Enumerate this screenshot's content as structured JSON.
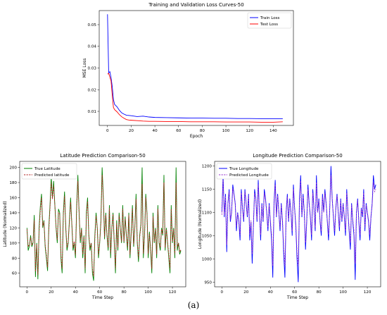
{
  "caption": "(a)",
  "colors": {
    "train": "#0000ff",
    "test": "#ff0000",
    "true_lat": "#008000",
    "pred_lat": "#b22222",
    "true_lon": "#0000ff",
    "pred_lon": "#9932cc"
  },
  "chart_data": [
    {
      "type": "line",
      "title": "Training and Validation Loss Curves-50",
      "xlabel": "Epoch",
      "ylabel": "MSE Loss",
      "xlim": [
        -7,
        157
      ],
      "ylim": [
        0.0035,
        0.0565
      ],
      "xticks": [
        0,
        20,
        40,
        60,
        80,
        100,
        120,
        140
      ],
      "yticks": [
        0.01,
        0.02,
        0.03,
        0.04,
        0.05
      ],
      "legend_position": "top-right",
      "series": [
        {
          "name": "Train Loss",
          "style": "solid",
          "x": [
            0,
            1,
            2,
            3,
            4,
            5,
            6,
            8,
            10,
            12,
            14,
            16,
            18,
            20,
            25,
            30,
            35,
            40,
            50,
            60,
            70,
            80,
            90,
            100,
            110,
            120,
            130,
            140,
            148
          ],
          "y": [
            0.0548,
            0.0278,
            0.0283,
            0.0255,
            0.0215,
            0.0155,
            0.0132,
            0.0121,
            0.0105,
            0.0093,
            0.0087,
            0.0082,
            0.0081,
            0.008,
            0.0076,
            0.0078,
            0.0074,
            0.0072,
            0.0071,
            0.007,
            0.0069,
            0.0069,
            0.0068,
            0.0068,
            0.0067,
            0.0067,
            0.0066,
            0.0066,
            0.0066
          ]
        },
        {
          "name": "Test Loss",
          "style": "solid",
          "x": [
            0,
            1,
            2,
            3,
            4,
            5,
            6,
            8,
            10,
            12,
            14,
            16,
            18,
            20,
            25,
            30,
            35,
            40,
            50,
            60,
            70,
            80,
            90,
            100,
            110,
            120,
            130,
            140,
            148
          ],
          "y": [
            0.0272,
            0.0275,
            0.0258,
            0.024,
            0.0175,
            0.0118,
            0.0108,
            0.0098,
            0.0085,
            0.0075,
            0.0068,
            0.0062,
            0.006,
            0.0059,
            0.0057,
            0.0055,
            0.0054,
            0.0054,
            0.0053,
            0.0053,
            0.0052,
            0.0052,
            0.0052,
            0.0051,
            0.0051,
            0.0051,
            0.005,
            0.005,
            0.0052
          ]
        }
      ]
    },
    {
      "type": "line",
      "title": "Latitude Prediction Comparison-50",
      "xlabel": "Time Step",
      "ylabel": "Latitude (Normalized)",
      "xlim": [
        -6,
        131
      ],
      "ylim": [
        42,
        208
      ],
      "xticks": [
        0,
        20,
        40,
        60,
        80,
        100,
        120
      ],
      "yticks": [
        60,
        80,
        100,
        120,
        140,
        160,
        180,
        200
      ],
      "legend_position": "top-left",
      "x": [
        0,
        1,
        2,
        3,
        4,
        5,
        6,
        7,
        8,
        9,
        10,
        11,
        12,
        13,
        14,
        15,
        16,
        17,
        18,
        19,
        20,
        21,
        22,
        23,
        24,
        25,
        26,
        27,
        28,
        29,
        30,
        31,
        32,
        33,
        34,
        35,
        36,
        37,
        38,
        39,
        40,
        41,
        42,
        43,
        44,
        45,
        46,
        47,
        48,
        49,
        50,
        51,
        52,
        53,
        54,
        55,
        56,
        57,
        58,
        59,
        60,
        61,
        62,
        63,
        64,
        65,
        66,
        67,
        68,
        69,
        70,
        71,
        72,
        73,
        74,
        75,
        76,
        77,
        78,
        79,
        80,
        81,
        82,
        83,
        84,
        85,
        86,
        87,
        88,
        89,
        90,
        91,
        92,
        93,
        94,
        95,
        96,
        97,
        98,
        99,
        100,
        101,
        102,
        103,
        104,
        105,
        106,
        107,
        108,
        109,
        110,
        111,
        112,
        113,
        114,
        115,
        116,
        117,
        118,
        119,
        120,
        121,
        122,
        123,
        124,
        125,
        126,
        127
      ],
      "series": [
        {
          "name": "True Latitude",
          "style": "solid",
          "values": [
            120,
            90,
            96,
            110,
            95,
            100,
            137,
            55,
            100,
            52,
            120,
            148,
            165,
            120,
            130,
            95,
            80,
            63,
            120,
            150,
            187,
            160,
            182,
            150,
            120,
            100,
            145,
            140,
            80,
            60,
            140,
            168,
            120,
            90,
            100,
            130,
            160,
            125,
            90,
            100,
            80,
            150,
            190,
            140,
            100,
            120,
            80,
            110,
            60,
            140,
            160,
            110,
            90,
            100,
            60,
            50,
            110,
            140,
            120,
            80,
            100,
            130,
            200,
            160,
            105,
            140,
            110,
            90,
            150,
            80,
            120,
            140,
            100,
            60,
            130,
            90,
            140,
            120,
            100,
            150,
            100,
            135,
            110,
            90,
            140,
            80,
            115,
            150,
            95,
            120,
            165,
            100,
            75,
            110,
            125,
            200,
            80,
            110,
            165,
            140,
            80,
            115,
            90,
            60,
            140,
            100,
            120,
            80,
            150,
            100,
            90,
            120,
            110,
            190,
            90,
            120,
            100,
            80,
            60,
            150,
            100,
            120,
            80,
            200,
            90,
            100,
            85,
            90
          ]
        },
        {
          "name": "Predicted latitude",
          "style": "dashed",
          "values": [
            118,
            95,
            98,
            107,
            97,
            102,
            130,
            62,
            98,
            58,
            115,
            143,
            160,
            122,
            128,
            98,
            84,
            68,
            116,
            146,
            180,
            158,
            176,
            150,
            122,
            104,
            140,
            138,
            85,
            66,
            136,
            162,
            122,
            94,
            102,
            127,
            154,
            126,
            94,
            102,
            84,
            145,
            182,
            140,
            104,
            118,
            85,
            108,
            66,
            135,
            155,
            112,
            94,
            100,
            66,
            56,
            106,
            136,
            120,
            84,
            102,
            127,
            190,
            158,
            108,
            137,
            112,
            94,
            146,
            86,
            118,
            138,
            102,
            66,
            126,
            94,
            136,
            120,
            102,
            145,
            102,
            132,
            112,
            94,
            137,
            85,
            112,
            146,
            98,
            120,
            158,
            103,
            80,
            108,
            122,
            178,
            86,
            110,
            160,
            138,
            86,
            112,
            94,
            66,
            135,
            102,
            118,
            85,
            145,
            102,
            94,
            118,
            112,
            180,
            94,
            118,
            102,
            84,
            66,
            145,
            102,
            118,
            85,
            180,
            94,
            100,
            88,
            92
          ]
        }
      ]
    },
    {
      "type": "line",
      "title": "Longitude Prediction Comparison-50",
      "xlabel": "Time Step",
      "ylabel": "Longitude (Normalized)",
      "xlim": [
        -6,
        131
      ],
      "ylim": [
        940,
        1210
      ],
      "xticks": [
        0,
        20,
        40,
        60,
        80,
        100,
        120
      ],
      "yticks": [
        950,
        1000,
        1050,
        1100,
        1150,
        1200
      ],
      "legend_position": "top-left",
      "x": [
        0,
        1,
        2,
        3,
        4,
        5,
        6,
        7,
        8,
        9,
        10,
        11,
        12,
        13,
        14,
        15,
        16,
        17,
        18,
        19,
        20,
        21,
        22,
        23,
        24,
        25,
        26,
        27,
        28,
        29,
        30,
        31,
        32,
        33,
        34,
        35,
        36,
        37,
        38,
        39,
        40,
        41,
        42,
        43,
        44,
        45,
        46,
        47,
        48,
        49,
        50,
        51,
        52,
        53,
        54,
        55,
        56,
        57,
        58,
        59,
        60,
        61,
        62,
        63,
        64,
        65,
        66,
        67,
        68,
        69,
        70,
        71,
        72,
        73,
        74,
        75,
        76,
        77,
        78,
        79,
        80,
        81,
        82,
        83,
        84,
        85,
        86,
        87,
        88,
        89,
        90,
        91,
        92,
        93,
        94,
        95,
        96,
        97,
        98,
        99,
        100,
        101,
        102,
        103,
        104,
        105,
        106,
        107,
        108,
        109,
        110,
        111,
        112,
        113,
        114,
        115,
        116,
        117,
        118,
        119,
        120,
        121,
        122,
        123,
        124,
        125,
        126,
        127
      ],
      "series": [
        {
          "name": "True Longitude",
          "style": "solid",
          "values": [
            1100,
            1180,
            1090,
            1140,
            1015,
            1120,
            1150,
            1080,
            1100,
            1160,
            1140,
            1120,
            1060,
            1100,
            1080,
            1040,
            1150,
            1110,
            1080,
            1150,
            1120,
            1090,
            1140,
            1040,
            1080,
            990,
            1070,
            1150,
            1130,
            1080,
            1170,
            1100,
            1040,
            1120,
            1080,
            1150,
            1130,
            1100,
            1060,
            1120,
            1080,
            1040,
            960,
            1120,
            1170,
            1090,
            1140,
            1100,
            1060,
            1120,
            1080,
            1010,
            960,
            1100,
            1140,
            1080,
            1130,
            1100,
            1050,
            1160,
            1110,
            1070,
            1000,
            950,
            1130,
            1180,
            1090,
            1140,
            1100,
            1020,
            1080,
            1160,
            1120,
            1090,
            1040,
            1150,
            1110,
            1060,
            1180,
            1100,
            1130,
            1080,
            1050,
            1140,
            1100,
            1150,
            1120,
            1080,
            1040,
            1110,
            1200,
            1130,
            1090,
            1050,
            1110,
            1140,
            1100,
            1060,
            1130,
            1080,
            1120,
            1090,
            1050,
            1150,
            1100,
            1060,
            1020,
            1120,
            1080,
            1050,
            955,
            1100,
            1130,
            1080,
            1040,
            1110,
            1090,
            1150,
            1060,
            1120,
            1100,
            1080,
            1040,
            1090,
            1120,
            1180,
            1150,
            1160
          ]
        },
        {
          "name": "Predicted Longitude",
          "style": "dashed",
          "values": [
            1095,
            1170,
            1095,
            1135,
            1030,
            1118,
            1145,
            1085,
            1100,
            1152,
            1138,
            1118,
            1070,
            1098,
            1083,
            1052,
            1142,
            1108,
            1085,
            1145,
            1118,
            1094,
            1136,
            1052,
            1083,
            1010,
            1072,
            1142,
            1128,
            1085,
            1160,
            1100,
            1052,
            1116,
            1084,
            1142,
            1126,
            1100,
            1068,
            1116,
            1084,
            1052,
            985,
            1114,
            1160,
            1093,
            1136,
            1100,
            1068,
            1116,
            1084,
            1025,
            985,
            1098,
            1134,
            1084,
            1126,
            1100,
            1060,
            1150,
            1108,
            1076,
            1015,
            985,
            1120,
            1168,
            1094,
            1134,
            1100,
            1035,
            1084,
            1150,
            1118,
            1094,
            1052,
            1142,
            1108,
            1068,
            1165,
            1100,
            1126,
            1084,
            1060,
            1134,
            1100,
            1142,
            1118,
            1084,
            1052,
            1108,
            1180,
            1128,
            1094,
            1060,
            1108,
            1136,
            1100,
            1068,
            1126,
            1084,
            1118,
            1094,
            1060,
            1142,
            1100,
            1068,
            1035,
            1116,
            1084,
            1060,
            990,
            1098,
            1126,
            1084,
            1052,
            1108,
            1094,
            1142,
            1068,
            1116,
            1100,
            1084,
            1052,
            1092,
            1116,
            1165,
            1145,
            1150
          ]
        }
      ]
    }
  ]
}
